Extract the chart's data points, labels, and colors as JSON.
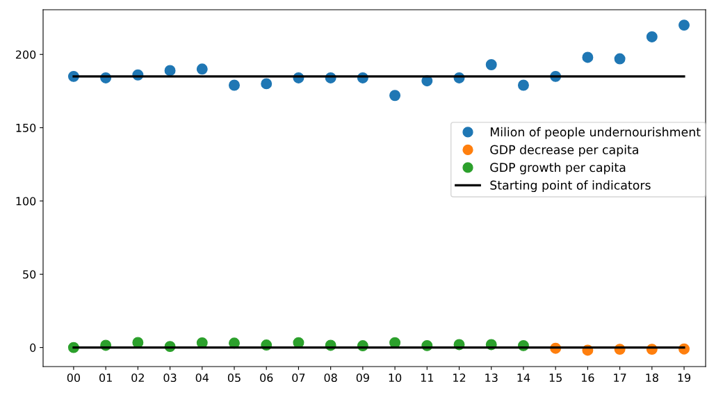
{
  "chart_data": {
    "type": "scatter",
    "categories": [
      "00",
      "01",
      "02",
      "03",
      "04",
      "05",
      "06",
      "07",
      "08",
      "09",
      "10",
      "11",
      "12",
      "13",
      "14",
      "15",
      "16",
      "17",
      "18",
      "19"
    ],
    "series": [
      {
        "name": "Milion of people undernourishment",
        "color": "#1f77b4",
        "values": [
          185,
          184,
          186,
          189,
          190,
          179,
          180,
          184,
          184,
          184,
          172,
          182,
          184,
          193,
          179,
          185,
          198,
          197,
          212,
          220
        ]
      },
      {
        "name": "GDP decrease per capita",
        "color": "#ff7f0e",
        "values": [
          null,
          null,
          null,
          null,
          null,
          null,
          null,
          null,
          null,
          null,
          null,
          null,
          null,
          null,
          null,
          -0.5,
          -1.8,
          -1.2,
          -1.2,
          -1
        ]
      },
      {
        "name": "GDP growth per capita",
        "color": "#2ca02c",
        "values": [
          0,
          1.5,
          3.4,
          0.7,
          3.2,
          3,
          1.7,
          3.3,
          1.5,
          1.2,
          3.3,
          1.3,
          2,
          2,
          1.3,
          null,
          null,
          null,
          null,
          null
        ]
      },
      {
        "name": "Starting point of indicators",
        "type": "line",
        "marker": "none",
        "color": "#000000",
        "values": [
          185,
          185,
          185,
          185,
          185,
          185,
          185,
          185,
          185,
          185,
          185,
          185,
          185,
          185,
          185,
          185,
          185,
          185,
          185,
          185
        ]
      },
      {
        "type": "line",
        "marker": "none",
        "color": "#000000",
        "values": [
          0,
          0,
          0,
          0,
          0,
          0,
          0,
          0,
          0,
          0,
          0,
          0,
          0,
          0,
          0,
          0,
          0,
          0,
          0,
          0
        ]
      }
    ],
    "ylim": [
      -13,
      230.5
    ],
    "yticks": [
      0,
      50,
      100,
      150,
      200
    ],
    "grid": false,
    "legend": "right",
    "marker": "circle"
  }
}
